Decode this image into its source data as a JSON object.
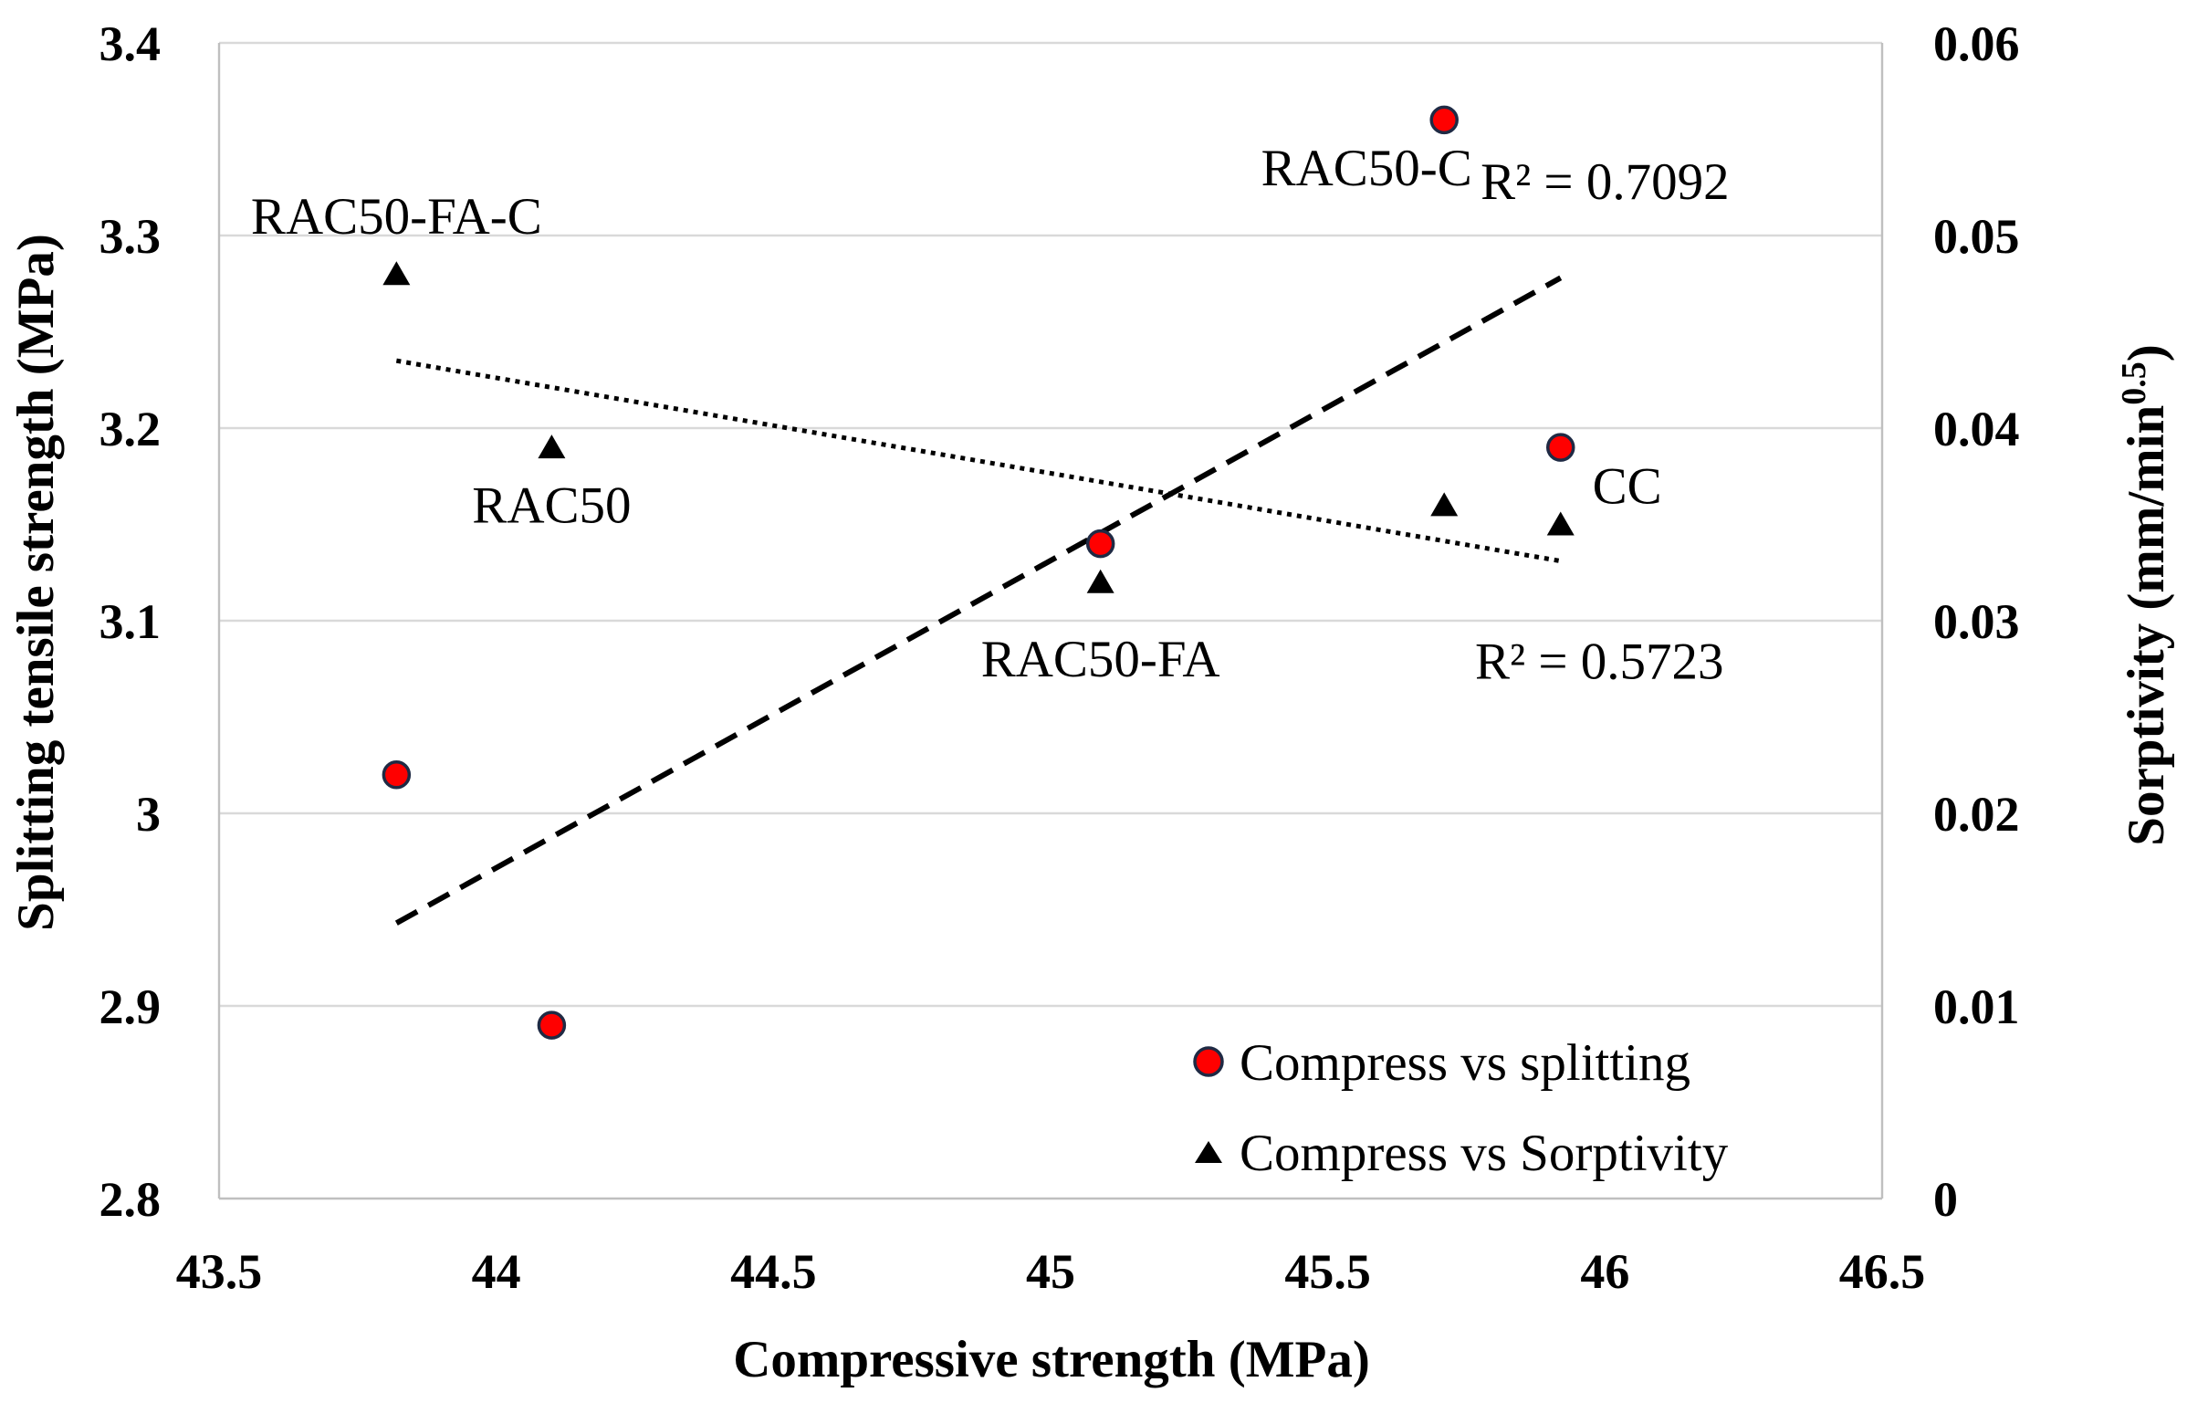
{
  "chart_data": {
    "type": "scatter",
    "xlabel": "Compressive strength (MPa)",
    "ylabel_left": "Splitting tensile strength (MPa)",
    "ylabel_right_base": "Sorptivity (mm/min",
    "ylabel_right_exp": "0.5",
    "ylabel_right_tail": ")",
    "xlim": [
      43.5,
      46.5
    ],
    "ylim_left": [
      2.8,
      3.4
    ],
    "ylim_right": [
      0,
      0.06
    ],
    "x_ticks": [
      "43.5",
      "44",
      "44.5",
      "45",
      "45.5",
      "46",
      "46.5"
    ],
    "y_left_ticks": [
      "2.8",
      "2.9",
      "3",
      "3.1",
      "3.2",
      "3.3",
      "3.4"
    ],
    "y_right_ticks": [
      "0",
      "0.01",
      "0.02",
      "0.03",
      "0.04",
      "0.05",
      "0.06"
    ],
    "grid": "horizontal",
    "legend_position": "bottom-right",
    "series": [
      {
        "name": "Compress vs splitting",
        "axis": "left",
        "marker": "circle",
        "color": "#ff0000",
        "edge_color": "#1f2a44",
        "points": [
          {
            "x": 43.82,
            "y": 3.02
          },
          {
            "x": 44.1,
            "y": 2.89
          },
          {
            "x": 45.09,
            "y": 3.14
          },
          {
            "x": 45.71,
            "y": 3.36
          },
          {
            "x": 45.92,
            "y": 3.19
          }
        ],
        "trendline": {
          "style": "dashed",
          "x_range": [
            43.82,
            45.92
          ],
          "y_range": [
            2.943,
            3.278
          ]
        }
      },
      {
        "name": "Compress vs Sorptivity",
        "axis": "right",
        "marker": "triangle",
        "color": "#000000",
        "points": [
          {
            "x": 43.82,
            "y": 0.048
          },
          {
            "x": 44.1,
            "y": 0.039
          },
          {
            "x": 45.09,
            "y": 0.032
          },
          {
            "x": 45.71,
            "y": 0.036
          },
          {
            "x": 45.92,
            "y": 0.035
          }
        ],
        "trendline": {
          "style": "dotted",
          "x_range": [
            43.82,
            45.92
          ],
          "y_range": [
            3.235,
            3.131
          ]
        }
      }
    ],
    "annotations": [
      {
        "text": "RAC50-FA-C",
        "x": 43.82,
        "y": 3.31
      },
      {
        "text": "RAC50",
        "x": 44.1,
        "y": 3.16
      },
      {
        "text": "RAC50-FA",
        "x": 45.09,
        "y": 3.08
      },
      {
        "text": "RAC50-C",
        "x": 45.57,
        "y": 3.335
      },
      {
        "text": "CC",
        "x": 46.04,
        "y": 3.17
      }
    ],
    "r2_labels": [
      {
        "text": "R² = 0.7092",
        "x": 46.0,
        "y": 3.328
      },
      {
        "text": "R² = 0.5723",
        "x": 45.99,
        "y": 3.079
      }
    ]
  }
}
